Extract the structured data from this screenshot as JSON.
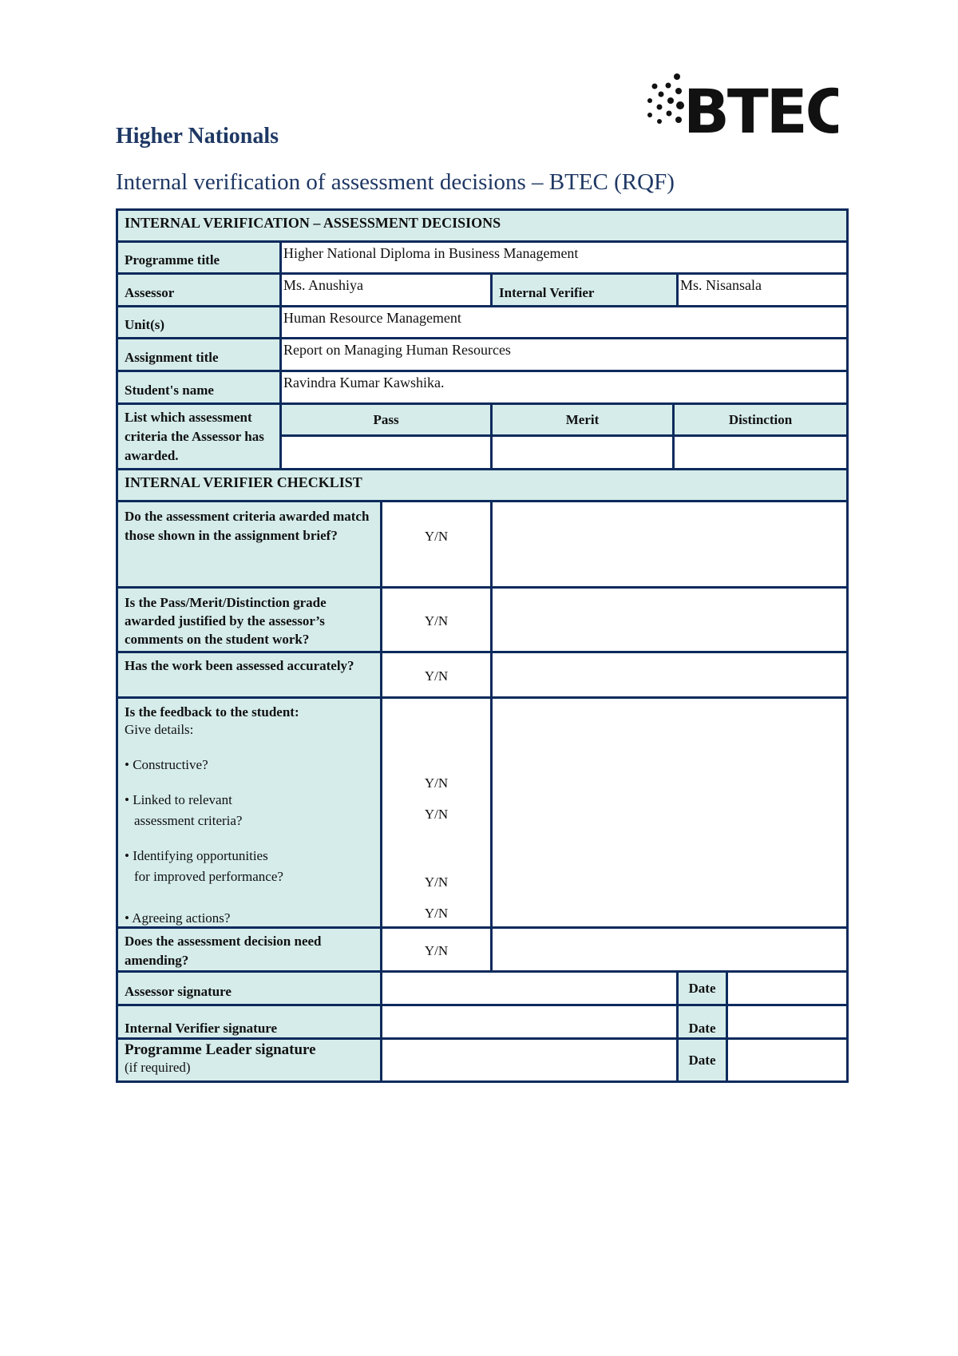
{
  "header": {
    "title": "Higher Nationals",
    "subtitle": "Internal verification of assessment decisions – BTEC (RQF)",
    "logo_text": "BTEC"
  },
  "decisions": {
    "section_title": "INTERNAL VERIFICATION – ASSESSMENT DECISIONS",
    "programme_label": "Programme title",
    "programme_value": "Higher National Diploma in Business Management",
    "assessor_label": "Assessor",
    "assessor_value": "Ms. Anushiya",
    "verifier_label": "Internal Verifier",
    "verifier_value": "Ms. Nisansala",
    "unit_label": "Unit(s)",
    "unit_value": "Human Resource Management",
    "assignment_label": "Assignment title",
    "assignment_value": "Report on Managing Human Resources",
    "student_label": "Student's name",
    "student_value": "Ravindra Kumar Kawshika.",
    "criteria_label": "List which assessment criteria the Assessor has awarded.",
    "grades": [
      "Pass",
      "Merit",
      "Distinction"
    ]
  },
  "checklist": {
    "section_title": "INTERNAL VERIFIER CHECKLIST",
    "q1": "Do the assessment criteria awarded match those shown in the assignment brief?",
    "q2": "Is the Pass/Merit/Distinction grade awarded justified by the assessor’s comments on the student work?",
    "q3": "Has the work been assessed accurately?",
    "q4_title": "Is the feedback to the student:",
    "q4_sub": "Give details:",
    "q4_items": [
      "• Constructive?",
      "• Linked to relevant",
      "assessment criteria?",
      "• Identifying opportunities",
      "for improved performance?",
      "• Agreeing actions?"
    ],
    "q5": "Does the assessment decision need amending?",
    "yn": "Y/N"
  },
  "signatures": {
    "assessor": "Assessor signature",
    "verifier": "Internal Verifier signature",
    "leader": "Programme Leader signature",
    "leader_note": "(if required)",
    "date": "Date"
  },
  "colors": {
    "header_fill": "#d5ecea",
    "border": "#0d2a5c",
    "title": "#1f3864"
  }
}
